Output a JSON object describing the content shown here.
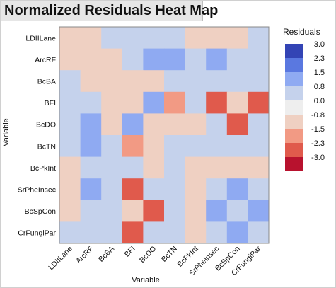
{
  "window": {
    "title": "Normalized Residuals Heat Map"
  },
  "chart_data": {
    "type": "heatmap",
    "title": "Normalized Residuals Heat Map",
    "xlabel": "Variable",
    "ylabel": "Variable",
    "x_categories": [
      "LDIILane",
      "ArcRF",
      "BcBA",
      "BFI",
      "BcDO",
      "BcTN",
      "BcPkInt",
      "SrPheInsec",
      "BcSpCon",
      "CrFungiPar"
    ],
    "y_categories": [
      "LDIILane",
      "ArcRF",
      "BcBA",
      "BFI",
      "BcDO",
      "BcTN",
      "BcPkInt",
      "SrPheInsec",
      "BcSpCon",
      "CrFungiPar"
    ],
    "values": [
      [
        -0.6,
        -0.6,
        0.6,
        0.6,
        0.6,
        0.6,
        -0.6,
        -0.6,
        -0.6,
        0.6
      ],
      [
        -0.6,
        -0.6,
        -0.6,
        0.6,
        1.6,
        1.6,
        0.6,
        1.6,
        0.6,
        0.6
      ],
      [
        0.6,
        -0.6,
        -0.6,
        -0.6,
        -0.6,
        0.6,
        0.6,
        0.6,
        0.6,
        0.6
      ],
      [
        0.6,
        0.6,
        -0.6,
        -0.6,
        1.6,
        -1.3,
        0.6,
        -2.0,
        -0.6,
        -2.0
      ],
      [
        0.6,
        1.6,
        -0.6,
        1.6,
        -0.6,
        -0.6,
        -0.6,
        0.6,
        -2.0,
        0.6
      ],
      [
        0.6,
        1.6,
        0.6,
        -1.3,
        -0.6,
        0.6,
        0.6,
        0.6,
        0.6,
        0.6
      ],
      [
        -0.6,
        0.6,
        0.6,
        0.6,
        -0.6,
        0.6,
        -0.6,
        -0.6,
        -0.6,
        -0.6
      ],
      [
        -0.6,
        1.6,
        0.6,
        -2.0,
        0.6,
        0.6,
        -0.6,
        0.6,
        1.6,
        0.6
      ],
      [
        -0.6,
        0.6,
        0.6,
        -0.6,
        -2.0,
        0.6,
        -0.6,
        1.6,
        0.6,
        1.6
      ],
      [
        0.6,
        0.6,
        0.6,
        -2.0,
        0.6,
        0.6,
        -0.6,
        0.6,
        1.6,
        0.6
      ]
    ],
    "legend": {
      "title": "Residuals",
      "labels": [
        "3.0",
        "2.3",
        "1.5",
        "0.8",
        "0.0",
        "-0.8",
        "-1.5",
        "-2.3",
        "-3.0"
      ],
      "colors": [
        "#3344b5",
        "#5a78e0",
        "#8faaf2",
        "#c5d2ec",
        "#eeeeee",
        "#efd0c2",
        "#f29a84",
        "#e05a4c",
        "#b8122e"
      ],
      "placement": "right"
    },
    "color_scale": {
      "stops": [
        {
          "value": 2.3,
          "color": "#5a78e0"
        },
        {
          "value": 1.5,
          "color": "#8faaf2"
        },
        {
          "value": 0.8,
          "color": "#c5d2ec"
        },
        {
          "value": -0.8,
          "color": "#efd0c2"
        },
        {
          "value": -1.5,
          "color": "#f29a84"
        },
        {
          "value": -2.3,
          "color": "#e05a4c"
        }
      ]
    }
  }
}
